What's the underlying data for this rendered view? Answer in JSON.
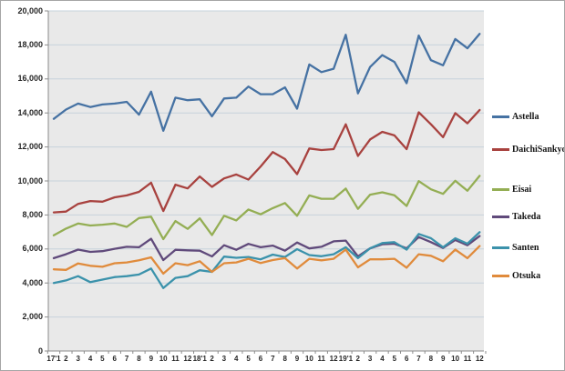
{
  "chart_data": {
    "type": "line",
    "title": "",
    "xlabel": "",
    "ylabel": "",
    "ylim": [
      0,
      20000
    ],
    "y_tick_step": 2000,
    "grid": true,
    "legend_position": "right",
    "plot_bg": "#e9e9e9",
    "gridline_color": "#c7d2dc",
    "axis_color": "#8c8c8c",
    "y_ticks": [
      "0",
      "2,000",
      "4,000",
      "6,000",
      "8,000",
      "10,000",
      "12,000",
      "14,000",
      "16,000",
      "18,000",
      "20,000"
    ],
    "x_categories": [
      "17'1",
      "2",
      "3",
      "4",
      "5",
      "6",
      "7",
      "8",
      "9",
      "10",
      "11",
      "12",
      "18'1",
      "2",
      "3",
      "4",
      "5",
      "6",
      "7",
      "8",
      "9",
      "10",
      "11",
      "12",
      "19'1",
      "2",
      "3",
      "4",
      "5",
      "6",
      "7",
      "8",
      "9",
      "10",
      "11",
      "12"
    ],
    "series": [
      {
        "name": "Astella",
        "color": "#4672a3",
        "values": [
          13650,
          14200,
          14550,
          14350,
          14500,
          14550,
          14650,
          13900,
          15250,
          12950,
          14900,
          14750,
          14800,
          13800,
          14850,
          14900,
          15550,
          15100,
          15100,
          15500,
          14250,
          16850,
          16400,
          16600,
          18600,
          15150,
          16700,
          17400,
          17000,
          15750,
          18550,
          17100,
          16800,
          18350,
          17800,
          18650
        ]
      },
      {
        "name": "DaichiSankyo",
        "color": "#a8423f",
        "values": [
          8150,
          8200,
          8650,
          8820,
          8780,
          9040,
          9150,
          9360,
          9900,
          8230,
          9780,
          9560,
          10260,
          9650,
          10150,
          10380,
          10080,
          10850,
          11700,
          11290,
          10400,
          11910,
          11820,
          11870,
          13330,
          11470,
          12440,
          12890,
          12680,
          11870,
          14040,
          13330,
          12570,
          13990,
          13390,
          14170
        ]
      },
      {
        "name": "Eisai",
        "color": "#94ae54",
        "values": [
          6800,
          7200,
          7500,
          7380,
          7430,
          7500,
          7300,
          7820,
          7900,
          6580,
          7640,
          7180,
          7800,
          6820,
          7950,
          7680,
          8320,
          8040,
          8400,
          8700,
          7950,
          9150,
          8950,
          8950,
          9550,
          8360,
          9190,
          9330,
          9160,
          8530,
          9990,
          9510,
          9240,
          10010,
          9420,
          10300
        ]
      },
      {
        "name": "Takeda",
        "color": "#604a7b",
        "values": [
          5460,
          5690,
          5960,
          5830,
          5870,
          6010,
          6130,
          6100,
          6600,
          5350,
          5950,
          5920,
          5900,
          5560,
          6220,
          5950,
          6300,
          6100,
          6200,
          5900,
          6380,
          6030,
          6130,
          6450,
          6490,
          5560,
          6040,
          6280,
          6310,
          6040,
          6700,
          6400,
          6060,
          6530,
          6220,
          6760
        ]
      },
      {
        "name": "Santen",
        "color": "#3b92ab",
        "values": [
          4000,
          4150,
          4400,
          4050,
          4200,
          4350,
          4400,
          4500,
          4850,
          3700,
          4300,
          4400,
          4750,
          4650,
          5550,
          5480,
          5530,
          5390,
          5670,
          5530,
          5990,
          5640,
          5570,
          5690,
          6100,
          5460,
          6040,
          6350,
          6400,
          5960,
          6880,
          6630,
          6100,
          6630,
          6310,
          6990
        ]
      },
      {
        "name": "Otsuka",
        "color": "#e08b3c",
        "values": [
          4800,
          4770,
          5150,
          5010,
          4950,
          5160,
          5210,
          5330,
          5510,
          4550,
          5160,
          5050,
          5280,
          4650,
          5160,
          5210,
          5420,
          5170,
          5350,
          5460,
          4850,
          5420,
          5330,
          5420,
          5960,
          4920,
          5390,
          5390,
          5420,
          4900,
          5690,
          5600,
          5280,
          5960,
          5460,
          6170
        ]
      }
    ]
  }
}
